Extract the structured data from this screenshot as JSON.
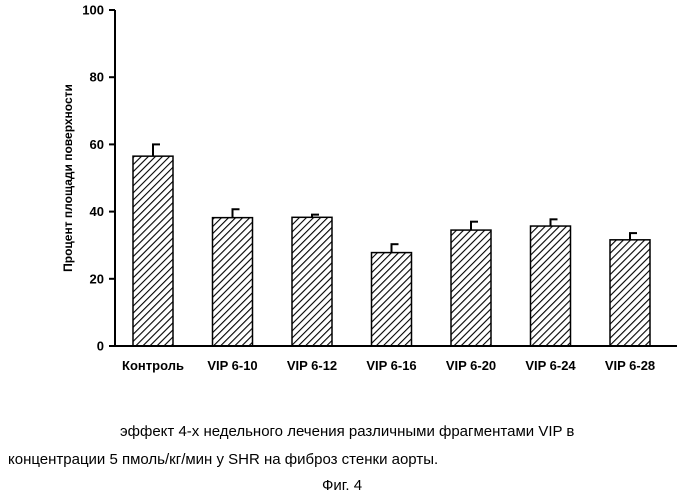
{
  "chart_data": {
    "type": "bar",
    "title": "",
    "xlabel": "",
    "ylabel": "Процент площади поверхности",
    "categories": [
      "Контроль",
      "VIP 6-10",
      "VIP 6-12",
      "VIP 6-16",
      "VIP 6-20",
      "VIP 6-24",
      "VIP 6-28"
    ],
    "values": [
      56.5,
      38.2,
      38.3,
      27.8,
      34.5,
      35.7,
      31.6
    ],
    "errors": [
      3.5,
      2.5,
      0.8,
      2.5,
      2.5,
      2.0,
      2.0
    ],
    "ylim": [
      0,
      100
    ],
    "yticks": [
      0,
      20,
      40,
      60,
      80,
      100
    ],
    "grid": false,
    "legend": "none",
    "bar_fill": "diagonal-hatch",
    "colors": {
      "bar_stroke": "#000000",
      "hatch": "#000000",
      "background": "#ffffff"
    }
  },
  "caption": {
    "line1": "эффект 4-х недельного лечения различными фрагментами VIP в",
    "line2": "концентрации 5 пмоль/кг/мин у SHR на фиброз стенки аорты.",
    "figure_label": "Фиг. 4"
  }
}
